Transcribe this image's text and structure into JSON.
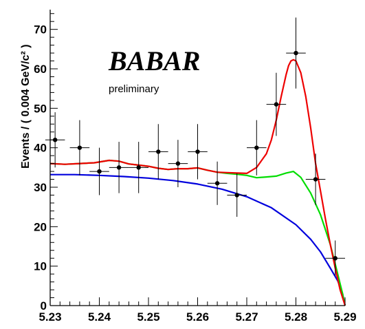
{
  "chart_data": {
    "type": "scatter",
    "title": "",
    "xlabel": "",
    "ylabel": "Events / ( 0.004 GeV/c² )",
    "xlim": [
      5.23,
      5.29
    ],
    "ylim": [
      0,
      75
    ],
    "xticks": [
      5.23,
      5.24,
      5.25,
      5.26,
      5.27,
      5.28,
      5.29
    ],
    "xtick_labels": [
      "5.23",
      "5.24",
      "5.25",
      "5.26",
      "5.27",
      "5.28",
      "5.29"
    ],
    "yticks": [
      0,
      10,
      20,
      30,
      40,
      50,
      60,
      70
    ],
    "ytick_labels": [
      "0",
      "10",
      "20",
      "30",
      "40",
      "50",
      "60",
      "70"
    ],
    "grid": false,
    "logo": {
      "top": "BABAR",
      "sub": "preliminary"
    },
    "points": {
      "x": [
        5.231,
        5.236,
        5.24,
        5.244,
        5.248,
        5.252,
        5.256,
        5.26,
        5.264,
        5.268,
        5.272,
        5.276,
        5.28,
        5.284,
        5.288
      ],
      "y": [
        42,
        40,
        34,
        35,
        35,
        39,
        36,
        39,
        31,
        28,
        40,
        51,
        64,
        32,
        12
      ],
      "yerr": [
        7,
        7,
        6,
        6.5,
        6.5,
        7,
        6,
        7,
        5.5,
        5.5,
        7,
        8,
        9,
        6.5,
        4.5
      ],
      "xerr": 0.002
    },
    "series": [
      {
        "color": "#0000dd",
        "x": [
          5.23,
          5.235,
          5.24,
          5.245,
          5.25,
          5.255,
          5.26,
          5.265,
          5.27,
          5.275,
          5.28,
          5.283,
          5.285,
          5.287,
          5.2885,
          5.2895,
          5.29
        ],
        "y": [
          33.2,
          33.2,
          33.0,
          32.7,
          32.3,
          31.7,
          30.8,
          29.5,
          27.6,
          24.8,
          20.5,
          16.8,
          13.6,
          9.5,
          6.3,
          3.0,
          0.0
        ]
      },
      {
        "color": "#00dd00",
        "x": [
          5.23,
          5.233,
          5.236,
          5.239,
          5.242,
          5.244,
          5.246,
          5.248,
          5.25,
          5.252,
          5.254,
          5.256,
          5.258,
          5.26,
          5.262,
          5.264,
          5.266,
          5.268,
          5.27,
          5.272,
          5.274,
          5.276,
          5.278,
          5.2795,
          5.281,
          5.283,
          5.285,
          5.287,
          5.2885,
          5.2895,
          5.29
        ],
        "y": [
          36.0,
          35.8,
          36.0,
          36.2,
          36.8,
          36.6,
          35.9,
          35.6,
          35.3,
          34.8,
          34.5,
          34.7,
          34.7,
          34.9,
          34.3,
          33.8,
          33.5,
          33.3,
          33.0,
          32.4,
          32.6,
          32.8,
          33.6,
          34.0,
          32.5,
          28.5,
          23.0,
          15.5,
          8.0,
          3.0,
          0.0
        ]
      },
      {
        "color": "#ee0000",
        "x": [
          5.23,
          5.233,
          5.236,
          5.239,
          5.242,
          5.244,
          5.246,
          5.248,
          5.25,
          5.252,
          5.254,
          5.256,
          5.258,
          5.26,
          5.262,
          5.264,
          5.266,
          5.268,
          5.27,
          5.272,
          5.274,
          5.275,
          5.276,
          5.277,
          5.278,
          5.2785,
          5.279,
          5.2795,
          5.28,
          5.281,
          5.282,
          5.283,
          5.284,
          5.285,
          5.286,
          5.287,
          5.288,
          5.289,
          5.29
        ],
        "y": [
          36.0,
          35.8,
          36.0,
          36.2,
          36.8,
          36.6,
          35.9,
          35.6,
          35.3,
          34.8,
          34.5,
          34.7,
          34.7,
          34.9,
          34.3,
          33.8,
          33.7,
          33.6,
          33.5,
          35.0,
          38.5,
          42.0,
          47.0,
          53.0,
          58.5,
          60.8,
          62.0,
          62.3,
          62.0,
          59.0,
          53.0,
          45.0,
          36.0,
          29.0,
          22.0,
          15.5,
          9.5,
          4.0,
          0.0
        ]
      }
    ]
  }
}
